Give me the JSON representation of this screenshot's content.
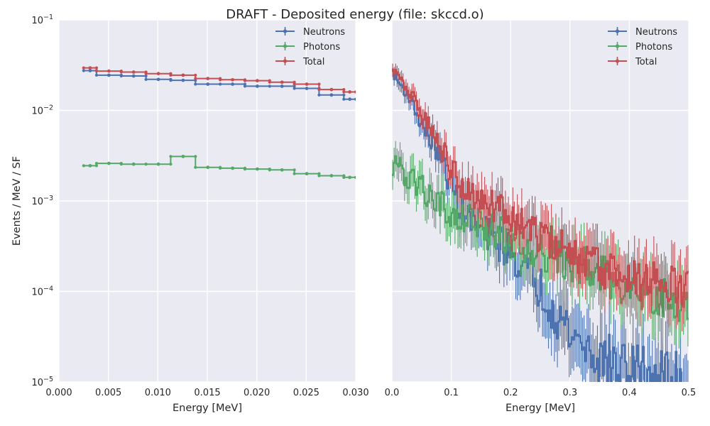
{
  "chart_data": {
    "type": "line",
    "title": "DRAFT - Deposited energy (file: skccd.o)",
    "ylabel": "Events / MeV / SF",
    "yscale": "log",
    "ylim": [
      1e-05,
      0.1
    ],
    "y_ticks": [
      {
        "value": 1e-05,
        "base": "10",
        "exp": "−5"
      },
      {
        "value": 0.0001,
        "base": "10",
        "exp": "−4"
      },
      {
        "value": 0.001,
        "base": "10",
        "exp": "−3"
      },
      {
        "value": 0.01,
        "base": "10",
        "exp": "−2"
      },
      {
        "value": 0.1,
        "base": "10",
        "exp": "−1"
      }
    ],
    "grid": true,
    "legend_position": "top-right",
    "colors": {
      "Neutrons": "#4c72b0",
      "Photons": "#55a868",
      "Total": "#c44e52"
    },
    "panels": [
      {
        "id": "left",
        "xlabel": "Energy [MeV]",
        "xlim": [
          0,
          0.03
        ],
        "x_ticks": [
          "0.000",
          "0.005",
          "0.010",
          "0.015",
          "0.020",
          "0.025",
          "0.030"
        ],
        "legend": [
          "Neutrons",
          "Photons",
          "Total"
        ],
        "bin_edges": [
          0.0025,
          0.0038,
          0.0063,
          0.0088,
          0.0113,
          0.0138,
          0.0163,
          0.0188,
          0.0213,
          0.0238,
          0.0263,
          0.0288,
          0.03
        ],
        "series": [
          {
            "name": "Neutrons",
            "values": [
              0.0275,
              0.0245,
              0.024,
              0.022,
              0.0215,
              0.0195,
              0.0195,
              0.0185,
              0.0185,
              0.0175,
              0.0148,
              0.0133
            ]
          },
          {
            "name": "Photons",
            "values": [
              0.00245,
              0.0026,
              0.00255,
              0.00255,
              0.0031,
              0.00235,
              0.0023,
              0.00225,
              0.0022,
              0.002,
              0.0019,
              0.00182
            ]
          },
          {
            "name": "Total",
            "values": [
              0.0295,
              0.0272,
              0.0265,
              0.0255,
              0.0245,
              0.0225,
              0.0218,
              0.0213,
              0.0205,
              0.0195,
              0.017,
              0.016
            ]
          }
        ]
      },
      {
        "id": "right",
        "xlabel": "Energy [MeV]",
        "xlim": [
          0,
          0.5
        ],
        "x_ticks": [
          "0.0",
          "0.1",
          "0.2",
          "0.3",
          "0.4",
          "0.5"
        ],
        "legend": [
          "Neutrons",
          "Photons",
          "Total"
        ],
        "bin_width": 0.0025,
        "series": [
          {
            "name": "Neutrons",
            "knots": [
              [
                0.0,
                0.027
              ],
              [
                0.01,
                0.021
              ],
              [
                0.03,
                0.014
              ],
              [
                0.05,
                0.007
              ],
              [
                0.08,
                0.0032
              ],
              [
                0.1,
                0.0015
              ],
              [
                0.12,
                0.00075
              ],
              [
                0.15,
                0.00048
              ],
              [
                0.2,
                0.00028
              ],
              [
                0.22,
                0.00019
              ],
              [
                0.25,
                0.00011
              ],
              [
                0.3,
                3.5e-05
              ],
              [
                0.35,
                1.8e-05
              ],
              [
                0.4,
                1.3e-05
              ],
              [
                0.5,
                1e-05
              ]
            ]
          },
          {
            "name": "Photons",
            "knots": [
              [
                0.0,
                0.0025
              ],
              [
                0.01,
                0.0023
              ],
              [
                0.03,
                0.0018
              ],
              [
                0.05,
                0.0014
              ],
              [
                0.08,
                0.00095
              ],
              [
                0.1,
                0.00075
              ],
              [
                0.15,
                0.00052
              ],
              [
                0.2,
                0.0004
              ],
              [
                0.22,
                0.00034
              ],
              [
                0.25,
                0.00028
              ],
              [
                0.3,
                0.00021
              ],
              [
                0.35,
                0.00016
              ],
              [
                0.4,
                0.00012
              ],
              [
                0.45,
                9.5e-05
              ],
              [
                0.5,
                8e-05
              ]
            ]
          },
          {
            "name": "Total",
            "knots": [
              [
                0.0,
                0.029
              ],
              [
                0.01,
                0.024
              ],
              [
                0.03,
                0.016
              ],
              [
                0.05,
                0.0095
              ],
              [
                0.08,
                0.0042
              ],
              [
                0.1,
                0.0025
              ],
              [
                0.12,
                0.0014
              ],
              [
                0.15,
                0.001
              ],
              [
                0.2,
                0.0007
              ],
              [
                0.22,
                0.00055
              ],
              [
                0.25,
                0.0004
              ],
              [
                0.3,
                0.00026
              ],
              [
                0.35,
                0.00019
              ],
              [
                0.4,
                0.00015
              ],
              [
                0.45,
                0.00012
              ],
              [
                0.5,
                0.0001
              ]
            ]
          }
        ]
      }
    ]
  }
}
